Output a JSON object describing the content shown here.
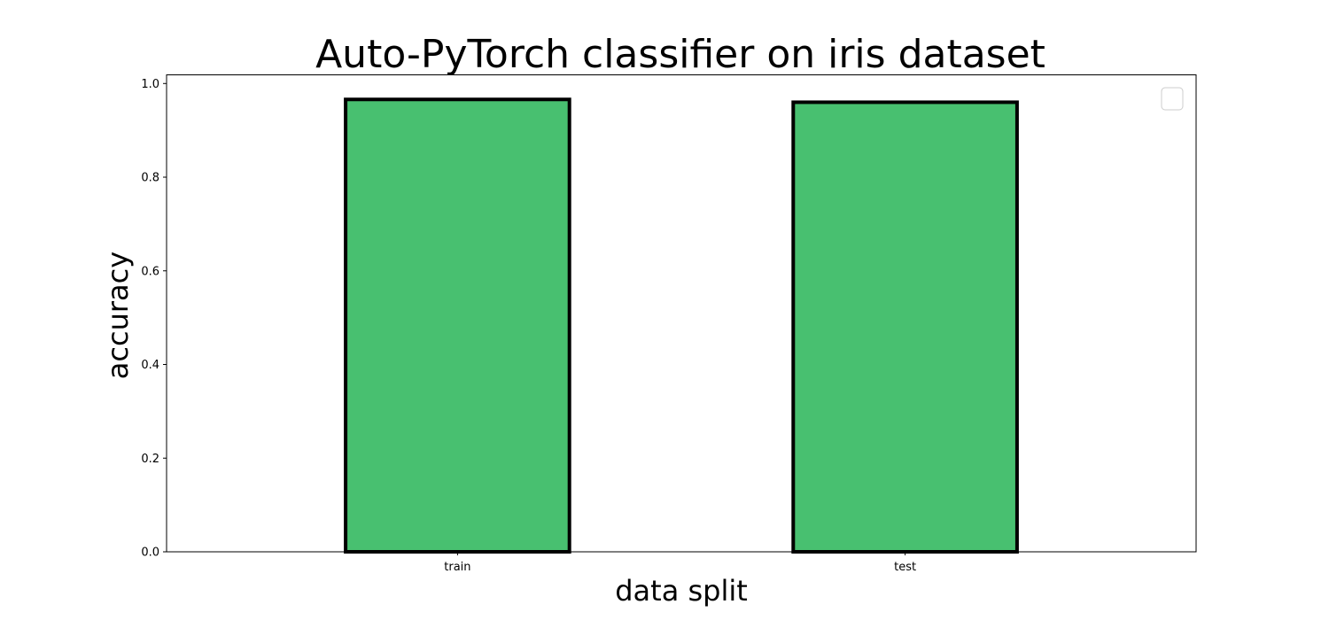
{
  "chart_data": {
    "type": "bar",
    "title": "Auto-PyTorch classifier on iris dataset",
    "xlabel": "data split",
    "ylabel": "accuracy",
    "categories": [
      "train",
      "test"
    ],
    "values": [
      0.966,
      0.96
    ],
    "ylim": [
      0,
      1.0185
    ],
    "yticks": [
      "0.0",
      "0.2",
      "0.4",
      "0.6",
      "0.8",
      "1.0"
    ],
    "grid": false,
    "legend_position": "top-right",
    "colors": {
      "bar_fill": "#48c070",
      "bar_edge": "#000000",
      "axes": "#000000"
    }
  }
}
